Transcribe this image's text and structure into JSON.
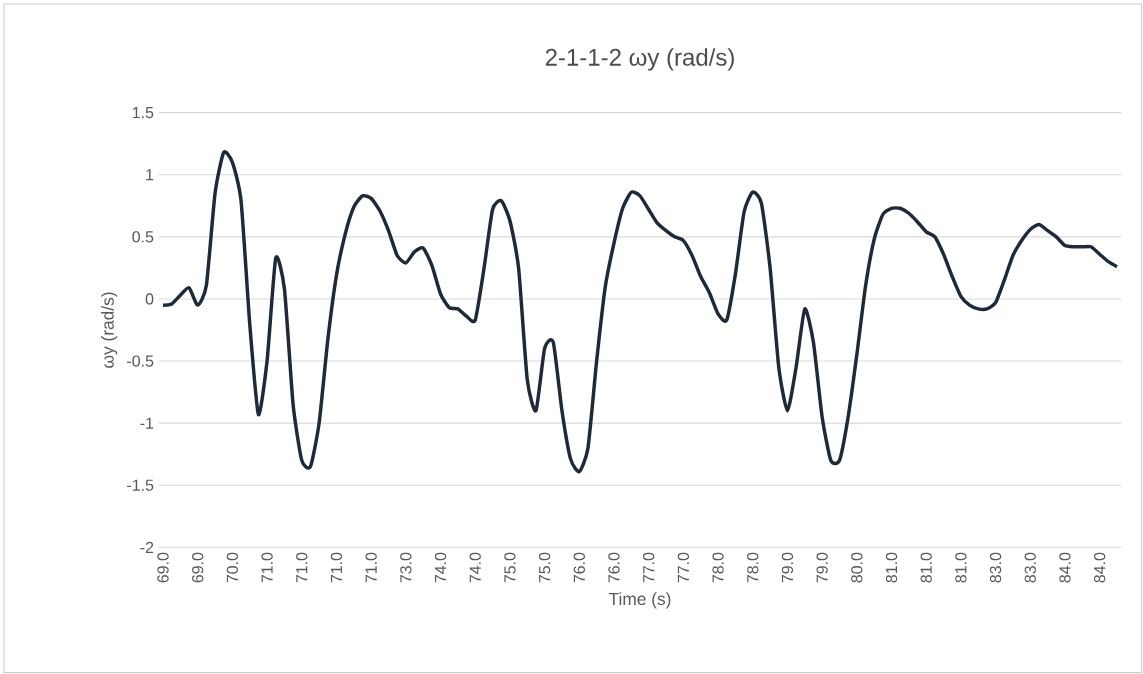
{
  "chart_data": {
    "type": "line",
    "title": "2-1-1-2 ωy (rad/s)",
    "xlabel": "Time (s)",
    "ylabel": "ωy (rad/s)",
    "categories": [
      "69.0",
      null,
      null,
      null,
      "69.0",
      null,
      null,
      null,
      "70.0",
      null,
      null,
      null,
      "71.0",
      null,
      null,
      null,
      "71.0",
      null,
      null,
      null,
      "71.0",
      null,
      null,
      null,
      "71.0",
      null,
      null,
      null,
      "73.0",
      null,
      null,
      null,
      "74.0",
      null,
      null,
      null,
      "74.0",
      null,
      null,
      null,
      "75.0",
      null,
      null,
      null,
      "75.0",
      null,
      null,
      null,
      "76.0",
      null,
      null,
      null,
      "76.0",
      null,
      null,
      null,
      "77.0",
      null,
      null,
      null,
      "77.0",
      null,
      null,
      null,
      "78.0",
      null,
      null,
      null,
      "78.0",
      null,
      null,
      null,
      "79.0",
      null,
      null,
      null,
      "79.0",
      null,
      null,
      null,
      "80.0",
      null,
      null,
      null,
      "81.0",
      null,
      null,
      null,
      "81.0",
      null,
      null,
      null,
      "81.0",
      null,
      null,
      null,
      "83.0",
      null,
      null,
      null,
      "83.0",
      null,
      null,
      null,
      "84.0",
      null,
      null,
      null,
      "84.0",
      null,
      null
    ],
    "series": [
      {
        "color": "#1c2a3a",
        "values": [
          -0.05,
          -0.04,
          0.03,
          0.09,
          -0.05,
          0.11,
          0.85,
          1.18,
          1.1,
          0.79,
          -0.2,
          -0.93,
          -0.5,
          0.33,
          0.08,
          -0.85,
          -1.3,
          -1.35,
          -1.0,
          -0.33,
          0.19,
          0.52,
          0.74,
          0.83,
          0.81,
          0.71,
          0.55,
          0.35,
          0.29,
          0.38,
          0.41,
          0.27,
          0.04,
          -0.07,
          -0.08,
          -0.14,
          -0.17,
          0.24,
          0.72,
          0.79,
          0.63,
          0.25,
          -0.65,
          -0.9,
          -0.4,
          -0.35,
          -0.9,
          -1.29,
          -1.39,
          -1.2,
          -0.5,
          0.1,
          0.45,
          0.73,
          0.86,
          0.83,
          0.72,
          0.61,
          0.55,
          0.5,
          0.47,
          0.35,
          0.18,
          0.05,
          -0.12,
          -0.17,
          0.2,
          0.7,
          0.86,
          0.77,
          0.25,
          -0.55,
          -0.9,
          -0.55,
          -0.08,
          -0.35,
          -0.95,
          -1.3,
          -1.3,
          -0.95,
          -0.45,
          0.1,
          0.48,
          0.68,
          0.73,
          0.73,
          0.69,
          0.62,
          0.54,
          0.5,
          0.36,
          0.18,
          0.02,
          -0.05,
          -0.08,
          -0.08,
          -0.03,
          0.15,
          0.35,
          0.47,
          0.56,
          0.6,
          0.55,
          0.5,
          0.43,
          0.42,
          0.42,
          0.42,
          0.36,
          0.3,
          0.26
        ]
      }
    ],
    "ylim": [
      -2,
      1.5
    ],
    "yticks": [
      -2,
      -1.5,
      -1,
      -0.5,
      0,
      0.5,
      1,
      1.5
    ],
    "grid": "y",
    "line_style": "solid"
  }
}
